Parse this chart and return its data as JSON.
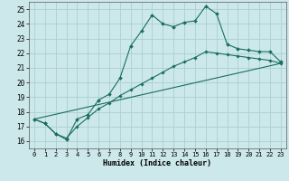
{
  "xlabel": "Humidex (Indice chaleur)",
  "bg_color": "#cce8ea",
  "grid_color": "#aad0d4",
  "line_color": "#1a6e5e",
  "xlim": [
    -0.5,
    23.5
  ],
  "ylim": [
    15.5,
    25.5
  ],
  "xticks": [
    0,
    1,
    2,
    3,
    4,
    5,
    6,
    7,
    8,
    9,
    10,
    11,
    12,
    13,
    14,
    15,
    16,
    17,
    18,
    19,
    20,
    21,
    22,
    23
  ],
  "yticks": [
    16,
    17,
    18,
    19,
    20,
    21,
    22,
    23,
    24,
    25
  ],
  "line1_x": [
    0,
    1,
    2,
    3,
    4,
    5,
    6,
    7,
    8,
    9,
    10,
    11,
    12,
    13,
    14,
    15,
    16,
    17,
    18,
    19,
    20,
    21,
    22,
    23
  ],
  "line1_y": [
    17.5,
    17.2,
    16.5,
    16.1,
    17.5,
    17.8,
    18.8,
    19.2,
    20.3,
    22.5,
    23.5,
    24.6,
    24.0,
    23.8,
    24.1,
    24.2,
    25.2,
    24.7,
    22.6,
    22.3,
    22.2,
    22.1,
    22.1,
    21.4
  ],
  "line2_x": [
    0,
    1,
    2,
    3,
    4,
    5,
    6,
    7,
    8,
    9,
    10,
    11,
    12,
    13,
    14,
    15,
    16,
    17,
    18,
    19,
    20,
    21,
    22,
    23
  ],
  "line2_y": [
    17.5,
    17.2,
    16.5,
    16.2,
    17.0,
    17.6,
    18.2,
    18.6,
    19.1,
    19.5,
    19.9,
    20.3,
    20.7,
    21.1,
    21.4,
    21.7,
    22.1,
    22.0,
    21.9,
    21.8,
    21.7,
    21.6,
    21.5,
    21.3
  ],
  "line3_x": [
    0,
    23
  ],
  "line3_y": [
    17.5,
    21.3
  ]
}
